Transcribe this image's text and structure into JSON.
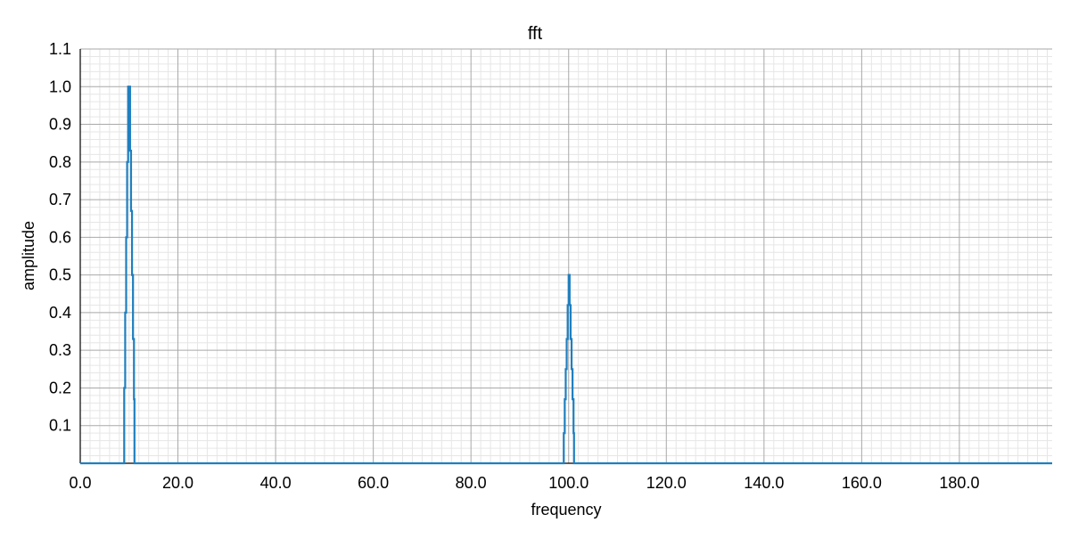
{
  "chart_data": {
    "type": "line",
    "title": "fft",
    "xlabel": "frequency",
    "ylabel": "amplitude",
    "xlim": [
      0,
      199
    ],
    "ylim": [
      0,
      1.1
    ],
    "grid": true,
    "legend": "none",
    "x_ticks": [
      0,
      20,
      40,
      60,
      80,
      100,
      120,
      140,
      160,
      180
    ],
    "x_tick_labels": [
      "0.0",
      "20.0",
      "40.0",
      "60.0",
      "80.0",
      "100.0",
      "120.0",
      "140.0",
      "160.0",
      "180.0"
    ],
    "y_ticks": [
      0.1,
      0.2,
      0.3,
      0.4,
      0.5,
      0.6,
      0.7,
      0.8,
      0.9,
      1.0,
      1.1
    ],
    "y_tick_labels": [
      "0.1",
      "0.2",
      "0.3",
      "0.4",
      "0.5",
      "0.6",
      "0.7",
      "0.8",
      "0.9",
      "1.0",
      "1.1"
    ],
    "series": [
      {
        "color": "#1f7fbf",
        "x": [
          0,
          8.9,
          9.0,
          9.2,
          9.4,
          9.6,
          9.8,
          10.0,
          10.2,
          10.4,
          10.6,
          10.8,
          11.0,
          11.1,
          98.9,
          99.0,
          99.2,
          99.4,
          99.6,
          99.8,
          100.0,
          100.2,
          100.4,
          100.6,
          100.8,
          101.0,
          101.1,
          199
        ],
        "y": [
          0,
          0,
          0.2,
          0.4,
          0.6,
          0.8,
          1.0,
          1.0,
          0.83,
          0.67,
          0.5,
          0.33,
          0.17,
          0,
          0,
          0.08,
          0.17,
          0.25,
          0.33,
          0.42,
          0.5,
          0.42,
          0.33,
          0.25,
          0.17,
          0.08,
          0,
          0
        ]
      }
    ]
  }
}
